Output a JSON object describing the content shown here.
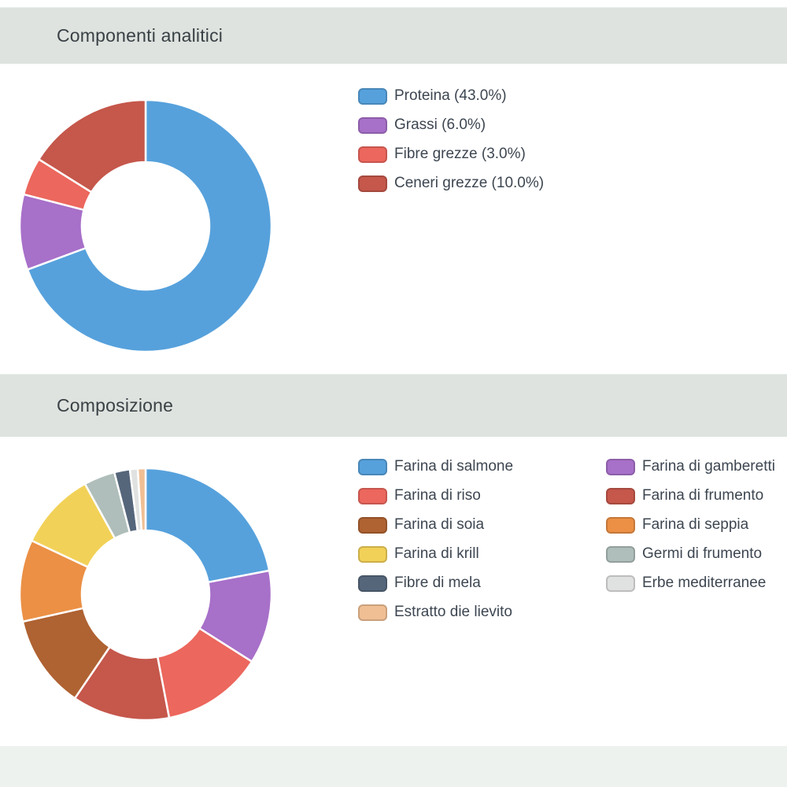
{
  "page": {
    "background": "#ffffff",
    "header_bg": "#dee3df",
    "footer_bg": "#edf2ef",
    "title_color": "#3a4145",
    "label_color": "#3d4651",
    "slice_border_color": "#ffffff"
  },
  "sections": [
    {
      "title": "Componenti analitici"
    },
    {
      "title": "Composizione"
    }
  ],
  "chart_data": [
    {
      "type": "pie",
      "variant": "donut",
      "title": "Componenti analitici",
      "cutout_percent": 50,
      "start_angle": "top",
      "direction": "clockwise",
      "legend_position": "right",
      "legend_columns": 1,
      "slices": [
        {
          "label": "Proteina (43.0%)",
          "value": 43.0,
          "color": "#56a1dc"
        },
        {
          "label": "Grassi (6.0%)",
          "value": 6.0,
          "color": "#a770c9"
        },
        {
          "label": "Fibre grezze (3.0%)",
          "value": 3.0,
          "color": "#ec675d"
        },
        {
          "label": "Ceneri grezze (10.0%)",
          "value": 10.0,
          "color": "#c5574b"
        }
      ]
    },
    {
      "type": "pie",
      "variant": "donut",
      "title": "Composizione",
      "cutout_percent": 50,
      "start_angle": "top",
      "direction": "clockwise",
      "legend_position": "right",
      "legend_columns": 2,
      "note": "values estimated from slice angles; no numeric labels shown",
      "slices": [
        {
          "label": "Farina di salmone",
          "value": 22.0,
          "color": "#56a1dc"
        },
        {
          "label": "Farina di gamberetti",
          "value": 12.0,
          "color": "#a770c9"
        },
        {
          "label": "Farina di riso",
          "value": 13.0,
          "color": "#ec675d"
        },
        {
          "label": "Farina di frumento",
          "value": 12.5,
          "color": "#c5574b"
        },
        {
          "label": "Farina di soia",
          "value": 12.0,
          "color": "#af6232"
        },
        {
          "label": "Farina di seppia",
          "value": 10.5,
          "color": "#eb9045"
        },
        {
          "label": "Farina di krill",
          "value": 10.0,
          "color": "#f2d158"
        },
        {
          "label": "Germi di frumento",
          "value": 4.0,
          "color": "#afbeba"
        },
        {
          "label": "Fibre di mela",
          "value": 2.0,
          "color": "#55667b"
        },
        {
          "label": "Erbe mediterranee",
          "value": 1.0,
          "color": "#e0e2e1"
        },
        {
          "label": "Estratto die lievito",
          "value": 1.0,
          "color": "#f0bf94"
        }
      ]
    }
  ]
}
